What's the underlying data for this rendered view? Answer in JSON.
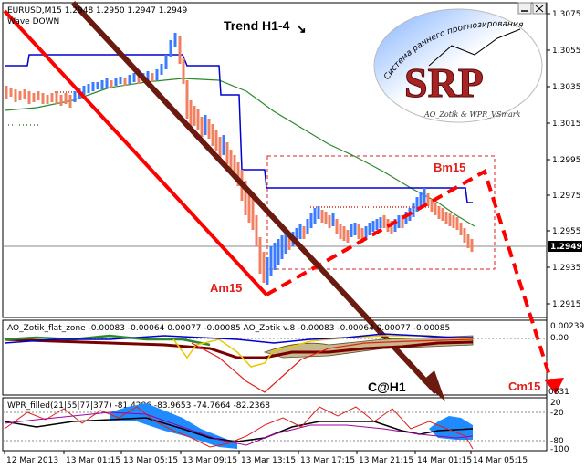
{
  "main_window": {
    "symbol_header": "EURUSD,M15  1.2948 1.2950 1.2947 1.2949",
    "indicator_label": "Wave DOWN",
    "trend_label": "Trend H1-4",
    "trend_arrow": "↘",
    "wave_labels": {
      "am15": "Am15",
      "bm15": "Bm15",
      "cm15": "Cm15",
      "c_h1": "C@H1"
    },
    "price_ticks": [
      "1.3075",
      "1.3055",
      "1.3035",
      "1.3015",
      "1.2995",
      "1.2975",
      "1.2955",
      "1.2935",
      "1.2915"
    ],
    "current_price": "1.2949"
  },
  "logo": {
    "text": "SRP",
    "arc_text": "Система раннего прогнозирования",
    "credit": "AO_Zotik & WPR_VSmark"
  },
  "ao_window": {
    "label": "AO_Zotik_flat_zone -0.00083 -0.00064 0.00077 -0.00085  AO_Zotik v.8 -0.00083 -0.00064 0.00077 -0.00085",
    "ticks": [
      "0.00239",
      "0.00"
    ]
  },
  "wpr_window": {
    "label": "WPR_filled(21|55|77|377) -81.4286 -83.9653 -74.7664 -82.2368",
    "ticks": [
      "20",
      "-20",
      "-80",
      "-100"
    ],
    "cut_label": "0831"
  },
  "time_axis": [
    "12 Mar 2013",
    "13 Mar 01:15",
    "13 Mar 05:15",
    "13 Mar 09:15",
    "13 Mar 13:15",
    "13 Mar 17:15",
    "13 Mar 21:15",
    "14 Mar 01:15",
    "14 Mar 05:15"
  ],
  "colors": {
    "bull": "#3a7bff",
    "bear": "#f08060",
    "wave": "#ff0000",
    "channel": "#6b1a10",
    "ma_blue": "#0000d0",
    "ma_green": "#2a8a2a",
    "price_tag": "#000000"
  }
}
